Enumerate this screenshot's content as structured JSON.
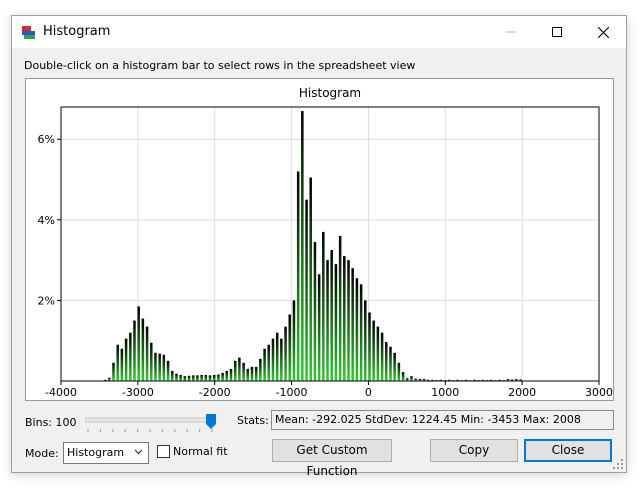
{
  "window": {
    "title": "Histogram"
  },
  "instruction": "Double-click on a histogram bar to select rows in the spreadsheet view",
  "controls": {
    "bins_label": "Bins: 100",
    "bins": 100,
    "bins_level": 1.0,
    "stats_label": "Stats:",
    "stats_value": "Mean: -292.025  StdDev: 1224.45  Min: -3453  Max: 2008",
    "mode_label": "Mode:",
    "mode_value": "Histogram",
    "normal_fit_label": "Normal fit",
    "normal_fit_checked": false,
    "get_custom_function_label": "Get Custom Function",
    "copy_label": "Copy",
    "close_label": "Close"
  },
  "colors": {
    "bar_top": "#000000",
    "bar_bottom": "#33cc33",
    "accent": "#0078d7"
  },
  "chart_data": {
    "type": "bar",
    "title": "Histogram",
    "xlabel": "",
    "ylabel": "",
    "xlim": [
      -4000,
      3000
    ],
    "ylim": [
      0,
      6.8
    ],
    "x_ticks": [
      -4000,
      -3000,
      -2000,
      -1000,
      0,
      1000,
      2000,
      3000
    ],
    "x_tick_labels": [
      "-4000",
      "-3000",
      "-2000",
      "-1000",
      "0",
      "1000",
      "2000",
      "3000"
    ],
    "y_ticks": [
      2,
      4,
      6
    ],
    "y_tick_labels": [
      "2%",
      "4%",
      "6%"
    ],
    "grid": true,
    "bin_width": 54.6,
    "bin_centers": [
      -3426,
      -3371,
      -3317,
      -3262,
      -3208,
      -3153,
      -3098,
      -3044,
      -2989,
      -2935,
      -2880,
      -2825,
      -2771,
      -2716,
      -2662,
      -2607,
      -2552,
      -2498,
      -2443,
      -2389,
      -2334,
      -2279,
      -2225,
      -2170,
      -2116,
      -2061,
      -2006,
      -1952,
      -1897,
      -1843,
      -1788,
      -1733,
      -1679,
      -1624,
      -1570,
      -1515,
      -1460,
      -1406,
      -1351,
      -1297,
      -1242,
      -1187,
      -1133,
      -1078,
      -1024,
      -969,
      -914,
      -860,
      -805,
      -751,
      -696,
      -641,
      -587,
      -532,
      -478,
      -423,
      -368,
      -314,
      -259,
      -205,
      -150,
      -95,
      -41,
      14,
      68,
      123,
      178,
      232,
      287,
      341,
      396,
      451,
      505,
      560,
      614,
      669,
      724,
      778,
      833,
      887,
      942,
      997,
      1051,
      1106,
      1160,
      1215,
      1270,
      1324,
      1379,
      1433,
      1488,
      1543,
      1597,
      1652,
      1706,
      1761,
      1816,
      1870,
      1925,
      1980
    ],
    "values": [
      0.03,
      0.08,
      0.45,
      0.9,
      0.8,
      1.05,
      1.2,
      1.5,
      1.85,
      1.55,
      1.35,
      0.95,
      0.7,
      0.68,
      0.65,
      0.5,
      0.25,
      0.18,
      0.15,
      0.12,
      0.13,
      0.14,
      0.14,
      0.15,
      0.15,
      0.14,
      0.15,
      0.16,
      0.2,
      0.25,
      0.3,
      0.5,
      0.58,
      0.45,
      0.3,
      0.35,
      0.35,
      0.55,
      0.8,
      0.9,
      1.05,
      1.2,
      1.05,
      1.35,
      1.65,
      2.0,
      5.2,
      6.7,
      4.5,
      5.05,
      3.45,
      2.65,
      3.7,
      3.0,
      3.25,
      2.9,
      3.6,
      3.1,
      3.0,
      2.8,
      2.55,
      2.4,
      2.0,
      1.7,
      1.5,
      1.35,
      1.2,
      0.97,
      0.85,
      0.7,
      0.45,
      0.22,
      0.07,
      0.12,
      0.06,
      0.05,
      0.05,
      0.03,
      0.03,
      0.02,
      0.03,
      0.02,
      0.03,
      0.02,
      0.03,
      0.02,
      0.03,
      0.02,
      0.03,
      0.02,
      0.03,
      0.02,
      0.03,
      0.02,
      0.03,
      0.02,
      0.05,
      0.04,
      0.05,
      0.04
    ]
  }
}
